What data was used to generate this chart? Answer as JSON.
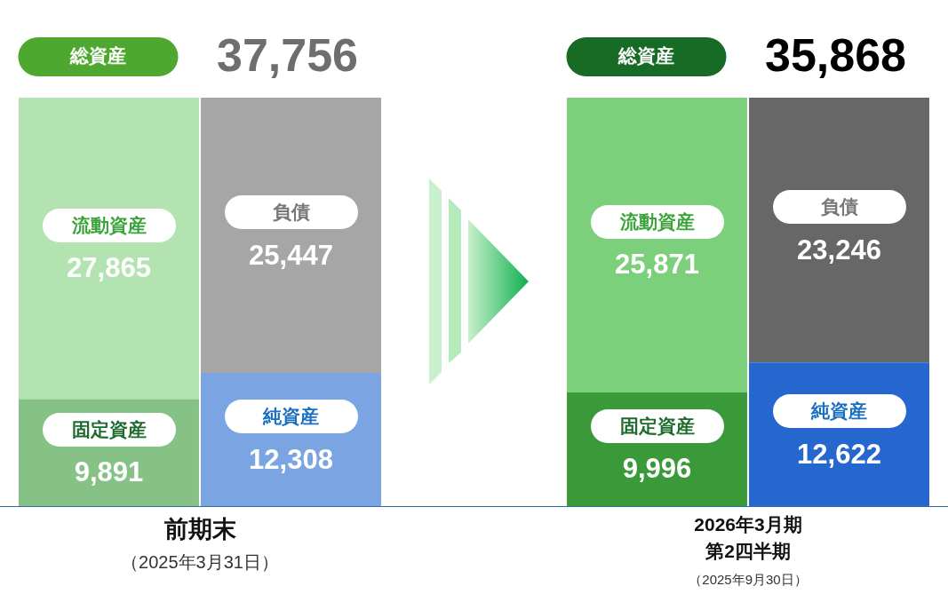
{
  "chart_data": [
    {
      "type": "bar",
      "stacked": true,
      "categories": [
        null,
        null
      ],
      "tick_labels": false,
      "legend": false,
      "series": [
        {
          "name": "固定資産",
          "color": "#86c186",
          "values": [
            9891,
            null
          ],
          "value_labels": [
            "9,891",
            null
          ]
        },
        {
          "name": "純資産",
          "color": "#7ba5e2",
          "values": [
            null,
            12308
          ],
          "value_labels": [
            null,
            "12,308"
          ]
        },
        {
          "name": "流動資産",
          "color": "#b3e3b1",
          "values": [
            27865,
            null
          ],
          "value_labels": [
            "27,865",
            null
          ]
        },
        {
          "name": "負債",
          "color": "#a6a6a6",
          "values": [
            null,
            25447
          ],
          "value_labels": [
            null,
            "25,447"
          ]
        }
      ],
      "totals": [
        "37,756",
        null
      ],
      "annotations": [
        "総資産",
        "前期末",
        "（2025年3月31日）"
      ]
    },
    {
      "type": "bar",
      "stacked": true,
      "categories": [
        null,
        null
      ],
      "tick_labels": false,
      "legend": false,
      "series": [
        {
          "name": "固定資産",
          "color": "#3a9a3a",
          "values": [
            9996,
            null
          ],
          "value_labels": [
            "9,996",
            null
          ]
        },
        {
          "name": "純資産",
          "color": "#2566cf",
          "values": [
            null,
            12622
          ],
          "value_labels": [
            null,
            "12,622"
          ]
        },
        {
          "name": "流動資産",
          "color": "#7dd07b",
          "values": [
            25871,
            null
          ],
          "value_labels": [
            "25,871",
            null
          ]
        },
        {
          "name": "負債",
          "color": "#676767",
          "values": [
            null,
            23246
          ],
          "value_labels": [
            null,
            "23,246"
          ]
        }
      ],
      "totals": [
        "35,868",
        null
      ],
      "annotations": [
        "総資産",
        "2026年3月期",
        "第2四半期",
        "（2025年9月30日）"
      ]
    }
  ]
}
